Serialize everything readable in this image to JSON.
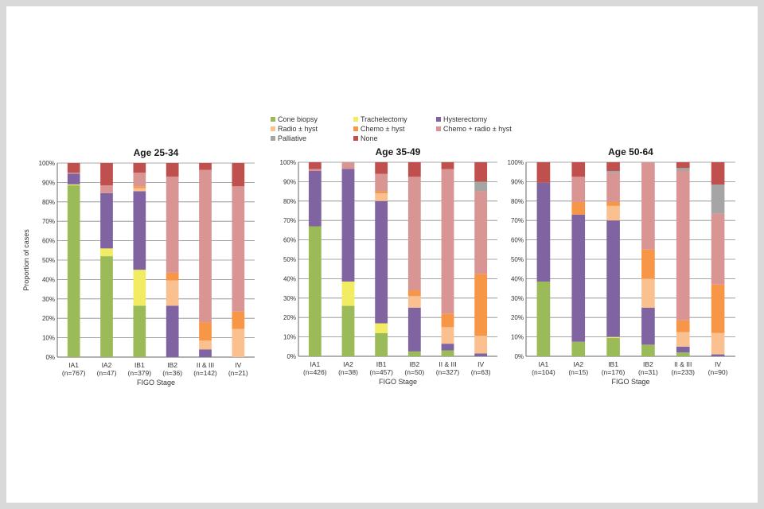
{
  "colors": {
    "Cone biopsy": "#9bbb59",
    "Trachelectomy": "#f2ec62",
    "Hysterectomy": "#8064a2",
    "Radio ± hyst": "#fac090",
    "Chemo ± hyst": "#f79646",
    "Chemo + radio ± hyst": "#d99594",
    "Palliative": "#a5a5a5",
    "None": "#c0504d"
  },
  "legend": [
    "Cone biopsy",
    "Trachelectomy",
    "Hysterectomy",
    "Radio ± hyst",
    "Chemo ± hyst",
    "Chemo + radio ± hyst",
    "Palliative",
    "None"
  ],
  "chart_data": [
    {
      "type": "bar",
      "stacked": true,
      "title": "Age 25-34",
      "xlabel": "FIGO Stage",
      "ylabel": "Proportion of cases",
      "ylim": [
        0,
        100
      ],
      "yticks": [
        "0%",
        "10%",
        "20%",
        "30%",
        "40%",
        "50%",
        "60%",
        "70%",
        "80%",
        "90%",
        "100%"
      ],
      "categories": [
        "IA1",
        "IA2",
        "IB1",
        "IB2",
        "II & III",
        "IV"
      ],
      "counts": [
        "(n=767)",
        "(n=47)",
        "(n=379)",
        "(n=36)",
        "(n=142)",
        "(n=21)"
      ],
      "series": [
        {
          "name": "Cone biopsy",
          "values": [
            88.5,
            52,
            26.5,
            0,
            0,
            0
          ]
        },
        {
          "name": "Trachelectomy",
          "values": [
            0.5,
            4,
            18.5,
            0,
            0,
            0
          ]
        },
        {
          "name": "Hysterectomy",
          "values": [
            5.5,
            28.5,
            40.5,
            26.5,
            4,
            0
          ]
        },
        {
          "name": "Radio ± hyst",
          "values": [
            0,
            0,
            1.5,
            13,
            4.5,
            14.5
          ]
        },
        {
          "name": "Chemo ± hyst",
          "values": [
            0,
            0,
            1,
            4,
            9.5,
            9
          ]
        },
        {
          "name": "Chemo + radio ± hyst",
          "values": [
            0.5,
            4,
            7,
            49.5,
            78.5,
            64.5
          ]
        },
        {
          "name": "Palliative",
          "values": [
            0,
            0,
            0,
            0,
            0,
            0
          ]
        },
        {
          "name": "None",
          "values": [
            5,
            11.5,
            5,
            7,
            3.5,
            12
          ]
        }
      ]
    },
    {
      "type": "bar",
      "stacked": true,
      "title": "Age 35-49",
      "xlabel": "FIGO Stage",
      "ylabel": "",
      "ylim": [
        0,
        100
      ],
      "yticks": [
        "0%",
        "10%",
        "20%",
        "30%",
        "40%",
        "50%",
        "60%",
        "70%",
        "80%",
        "90%",
        "100%"
      ],
      "categories": [
        "IA1",
        "IA2",
        "IB1",
        "IB2",
        "II & III",
        "IV"
      ],
      "counts": [
        "(n=426)",
        "(n=38)",
        "(n=457)",
        "(n=50)",
        "(n=327)",
        "(n=63)"
      ],
      "series": [
        {
          "name": "Cone biopsy",
          "values": [
            67,
            26,
            12,
            2.5,
            3,
            0
          ]
        },
        {
          "name": "Trachelectomy",
          "values": [
            0,
            12.5,
            5,
            0,
            0,
            0
          ]
        },
        {
          "name": "Hysterectomy",
          "values": [
            28.5,
            58,
            63,
            22.5,
            3.5,
            1.5
          ]
        },
        {
          "name": "Radio ± hyst",
          "values": [
            0,
            0,
            4,
            6,
            8.5,
            9
          ]
        },
        {
          "name": "Chemo ± hyst",
          "values": [
            0,
            0,
            1,
            3,
            7,
            32
          ]
        },
        {
          "name": "Chemo + radio ± hyst",
          "values": [
            1,
            3.5,
            9,
            58.5,
            74.5,
            42.5
          ]
        },
        {
          "name": "Palliative",
          "values": [
            0,
            0,
            0,
            0,
            0,
            5
          ]
        },
        {
          "name": "None",
          "values": [
            3.5,
            0,
            6,
            7.5,
            3.5,
            10
          ]
        }
      ]
    },
    {
      "type": "bar",
      "stacked": true,
      "title": "Age 50-64",
      "xlabel": "FIGO Stage",
      "ylabel": "",
      "ylim": [
        0,
        100
      ],
      "yticks": [
        "0%",
        "10%",
        "20%",
        "30%",
        "40%",
        "50%",
        "60%",
        "70%",
        "80%",
        "90%",
        "100%"
      ],
      "categories": [
        "IA1",
        "IA2",
        "IB1",
        "IB2",
        "II & III",
        "IV"
      ],
      "counts": [
        "(n=104)",
        "(n=15)",
        "(n=176)",
        "(n=31)",
        "(n=233)",
        "(n=90)"
      ],
      "series": [
        {
          "name": "Cone biopsy",
          "values": [
            38.5,
            7.5,
            9.5,
            6,
            2,
            0
          ]
        },
        {
          "name": "Trachelectomy",
          "values": [
            0,
            0,
            0.5,
            0,
            0,
            0
          ]
        },
        {
          "name": "Hysterectomy",
          "values": [
            51,
            65.5,
            60,
            19,
            3,
            1
          ]
        },
        {
          "name": "Radio ± hyst",
          "values": [
            0,
            0,
            7.5,
            15,
            7.5,
            11
          ]
        },
        {
          "name": "Chemo ± hyst",
          "values": [
            0,
            6.5,
            2,
            15,
            6,
            25
          ]
        },
        {
          "name": "Chemo + radio ± hyst",
          "values": [
            0,
            13,
            15,
            45,
            77,
            36.5
          ]
        },
        {
          "name": "Palliative",
          "values": [
            0,
            0,
            1,
            0,
            1.5,
            15
          ]
        },
        {
          "name": "None",
          "values": [
            10.5,
            7.5,
            4.5,
            0,
            3,
            11.5
          ]
        }
      ]
    }
  ]
}
